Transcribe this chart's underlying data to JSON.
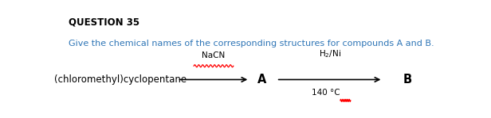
{
  "title": "QUESTION 35",
  "subtitle": "Give the chemical names of the corresponding structures for compounds A and B.",
  "reactant": "(chloromethyl)cyclopentane",
  "reagent1": "NaCN",
  "reagent2_top": "H₂/Ni",
  "reagent2_bottom": "140 °C",
  "compound_a": "A",
  "compound_b": "B",
  "title_color": "#000000",
  "subtitle_color": "#2E75B6",
  "body_color": "#000000",
  "arrow_color": "#000000",
  "wavy_color": "#FF0000",
  "bg_color": "#FFFFFF",
  "title_fontsize": 8.5,
  "subtitle_fontsize": 8.0,
  "body_fontsize": 8.5,
  "reagent_fontsize": 7.5
}
